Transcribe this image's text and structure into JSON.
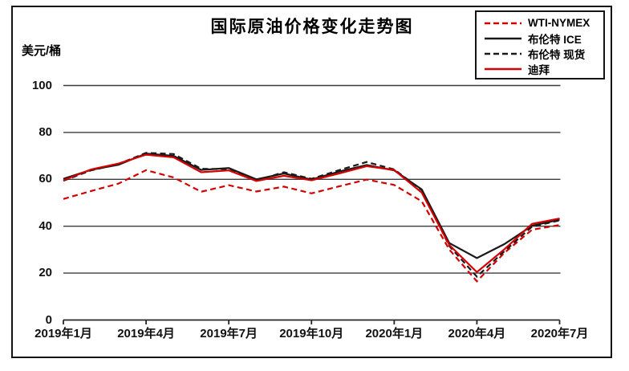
{
  "chart_data": {
    "type": "line",
    "title": "国际原油价格变化走势图",
    "ylabel": "美元/桶",
    "xlabel": "",
    "ylim": [
      0,
      100
    ],
    "y_ticks": [
      0,
      20,
      40,
      60,
      80,
      100
    ],
    "grid": "horizontal",
    "legend_position": "top-right",
    "categories": [
      "2019年1月",
      "2019年2月",
      "2019年3月",
      "2019年4月",
      "2019年5月",
      "2019年6月",
      "2019年7月",
      "2019年8月",
      "2019年9月",
      "2019年10月",
      "2019年11月",
      "2019年12月",
      "2020年1月",
      "2020年2月",
      "2020年3月",
      "2020年4月",
      "2020年5月",
      "2020年6月",
      "2020年7月"
    ],
    "x_tick_indices": [
      0,
      3,
      6,
      9,
      12,
      15,
      18
    ],
    "x_tick_labels": [
      "2019年1月",
      "2019年4月",
      "2019年7月",
      "2019年10月",
      "2020年1月",
      "2020年4月",
      "2020年7月"
    ],
    "series": [
      {
        "key": "wti-nymex",
        "name": "WTI-NYMEX",
        "color": "#d40000",
        "dash": true,
        "values": [
          51.6,
          55.0,
          58.2,
          63.9,
          60.8,
          54.7,
          57.5,
          54.8,
          56.9,
          54.0,
          57.0,
          59.9,
          57.6,
          50.6,
          30.0,
          16.5,
          28.7,
          38.5,
          40.5
        ]
      },
      {
        "key": "brent-ice",
        "name": "布伦特 ICE",
        "color": "#1a1a1a",
        "dash": false,
        "values": [
          60.2,
          64.0,
          66.2,
          71.0,
          70.0,
          64.0,
          64.8,
          60.0,
          62.5,
          59.9,
          63.3,
          66.1,
          63.8,
          55.7,
          32.8,
          26.4,
          32.4,
          40.2,
          42.8
        ]
      },
      {
        "key": "brent-spot",
        "name": "布伦特 现货",
        "color": "#1a1a1a",
        "dash": true,
        "values": [
          59.4,
          63.8,
          66.5,
          71.3,
          70.8,
          64.5,
          64.3,
          59.5,
          63.0,
          60.2,
          63.9,
          67.4,
          64.2,
          55.4,
          31.5,
          18.5,
          29.4,
          39.8,
          42.5
        ]
      },
      {
        "key": "dubai",
        "name": "迪拜",
        "color": "#d40000",
        "dash": false,
        "values": [
          59.6,
          64.2,
          66.7,
          70.5,
          69.4,
          63.0,
          63.8,
          59.3,
          61.5,
          59.6,
          62.5,
          65.6,
          64.0,
          54.3,
          32.0,
          20.4,
          30.2,
          41.0,
          43.3
        ]
      }
    ],
    "axis_color": "#262626",
    "gridline_color": "#3c3c3c"
  }
}
